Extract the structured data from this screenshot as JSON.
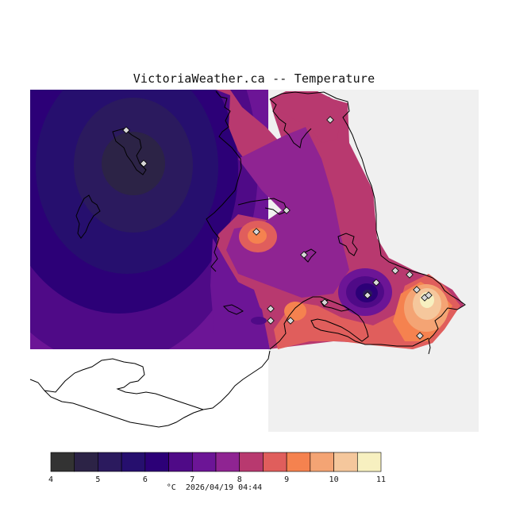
{
  "title": "VictoriaWeather.ca -- Temperature",
  "colors": {
    "background": "#ffffff",
    "water_outside_grid": "#f0f0f0",
    "coast_line": "#000000",
    "marker_fill": "#d8d8d8"
  },
  "legend": {
    "unit": "°C",
    "timestamp": "2026/04/19 04:44",
    "ticks": [
      "4",
      "5",
      "6",
      "7",
      "8",
      "9",
      "10",
      "11"
    ],
    "bins": [
      {
        "min": 4.0,
        "max": 4.5,
        "color": "#333333"
      },
      {
        "min": 4.5,
        "max": 5.0,
        "color": "#2c2346"
      },
      {
        "min": 5.0,
        "max": 5.5,
        "color": "#2b1a5e"
      },
      {
        "min": 5.5,
        "max": 6.0,
        "color": "#260f6e"
      },
      {
        "min": 6.0,
        "max": 6.5,
        "color": "#2c0077"
      },
      {
        "min": 6.5,
        "max": 7.0,
        "color": "#4f0a87"
      },
      {
        "min": 7.0,
        "max": 7.5,
        "color": "#6c1596"
      },
      {
        "min": 7.5,
        "max": 8.0,
        "color": "#8f2492"
      },
      {
        "min": 8.0,
        "max": 8.5,
        "color": "#b8396f"
      },
      {
        "min": 8.5,
        "max": 9.0,
        "color": "#e05e5c"
      },
      {
        "min": 9.0,
        "max": 9.5,
        "color": "#f5824f"
      },
      {
        "min": 9.5,
        "max": 10.0,
        "color": "#f4a474"
      },
      {
        "min": 10.0,
        "max": 10.5,
        "color": "#f5c79c"
      },
      {
        "min": 10.5,
        "max": 11.0,
        "color": "#f7f0c0"
      }
    ]
  },
  "stations_count": 18
}
